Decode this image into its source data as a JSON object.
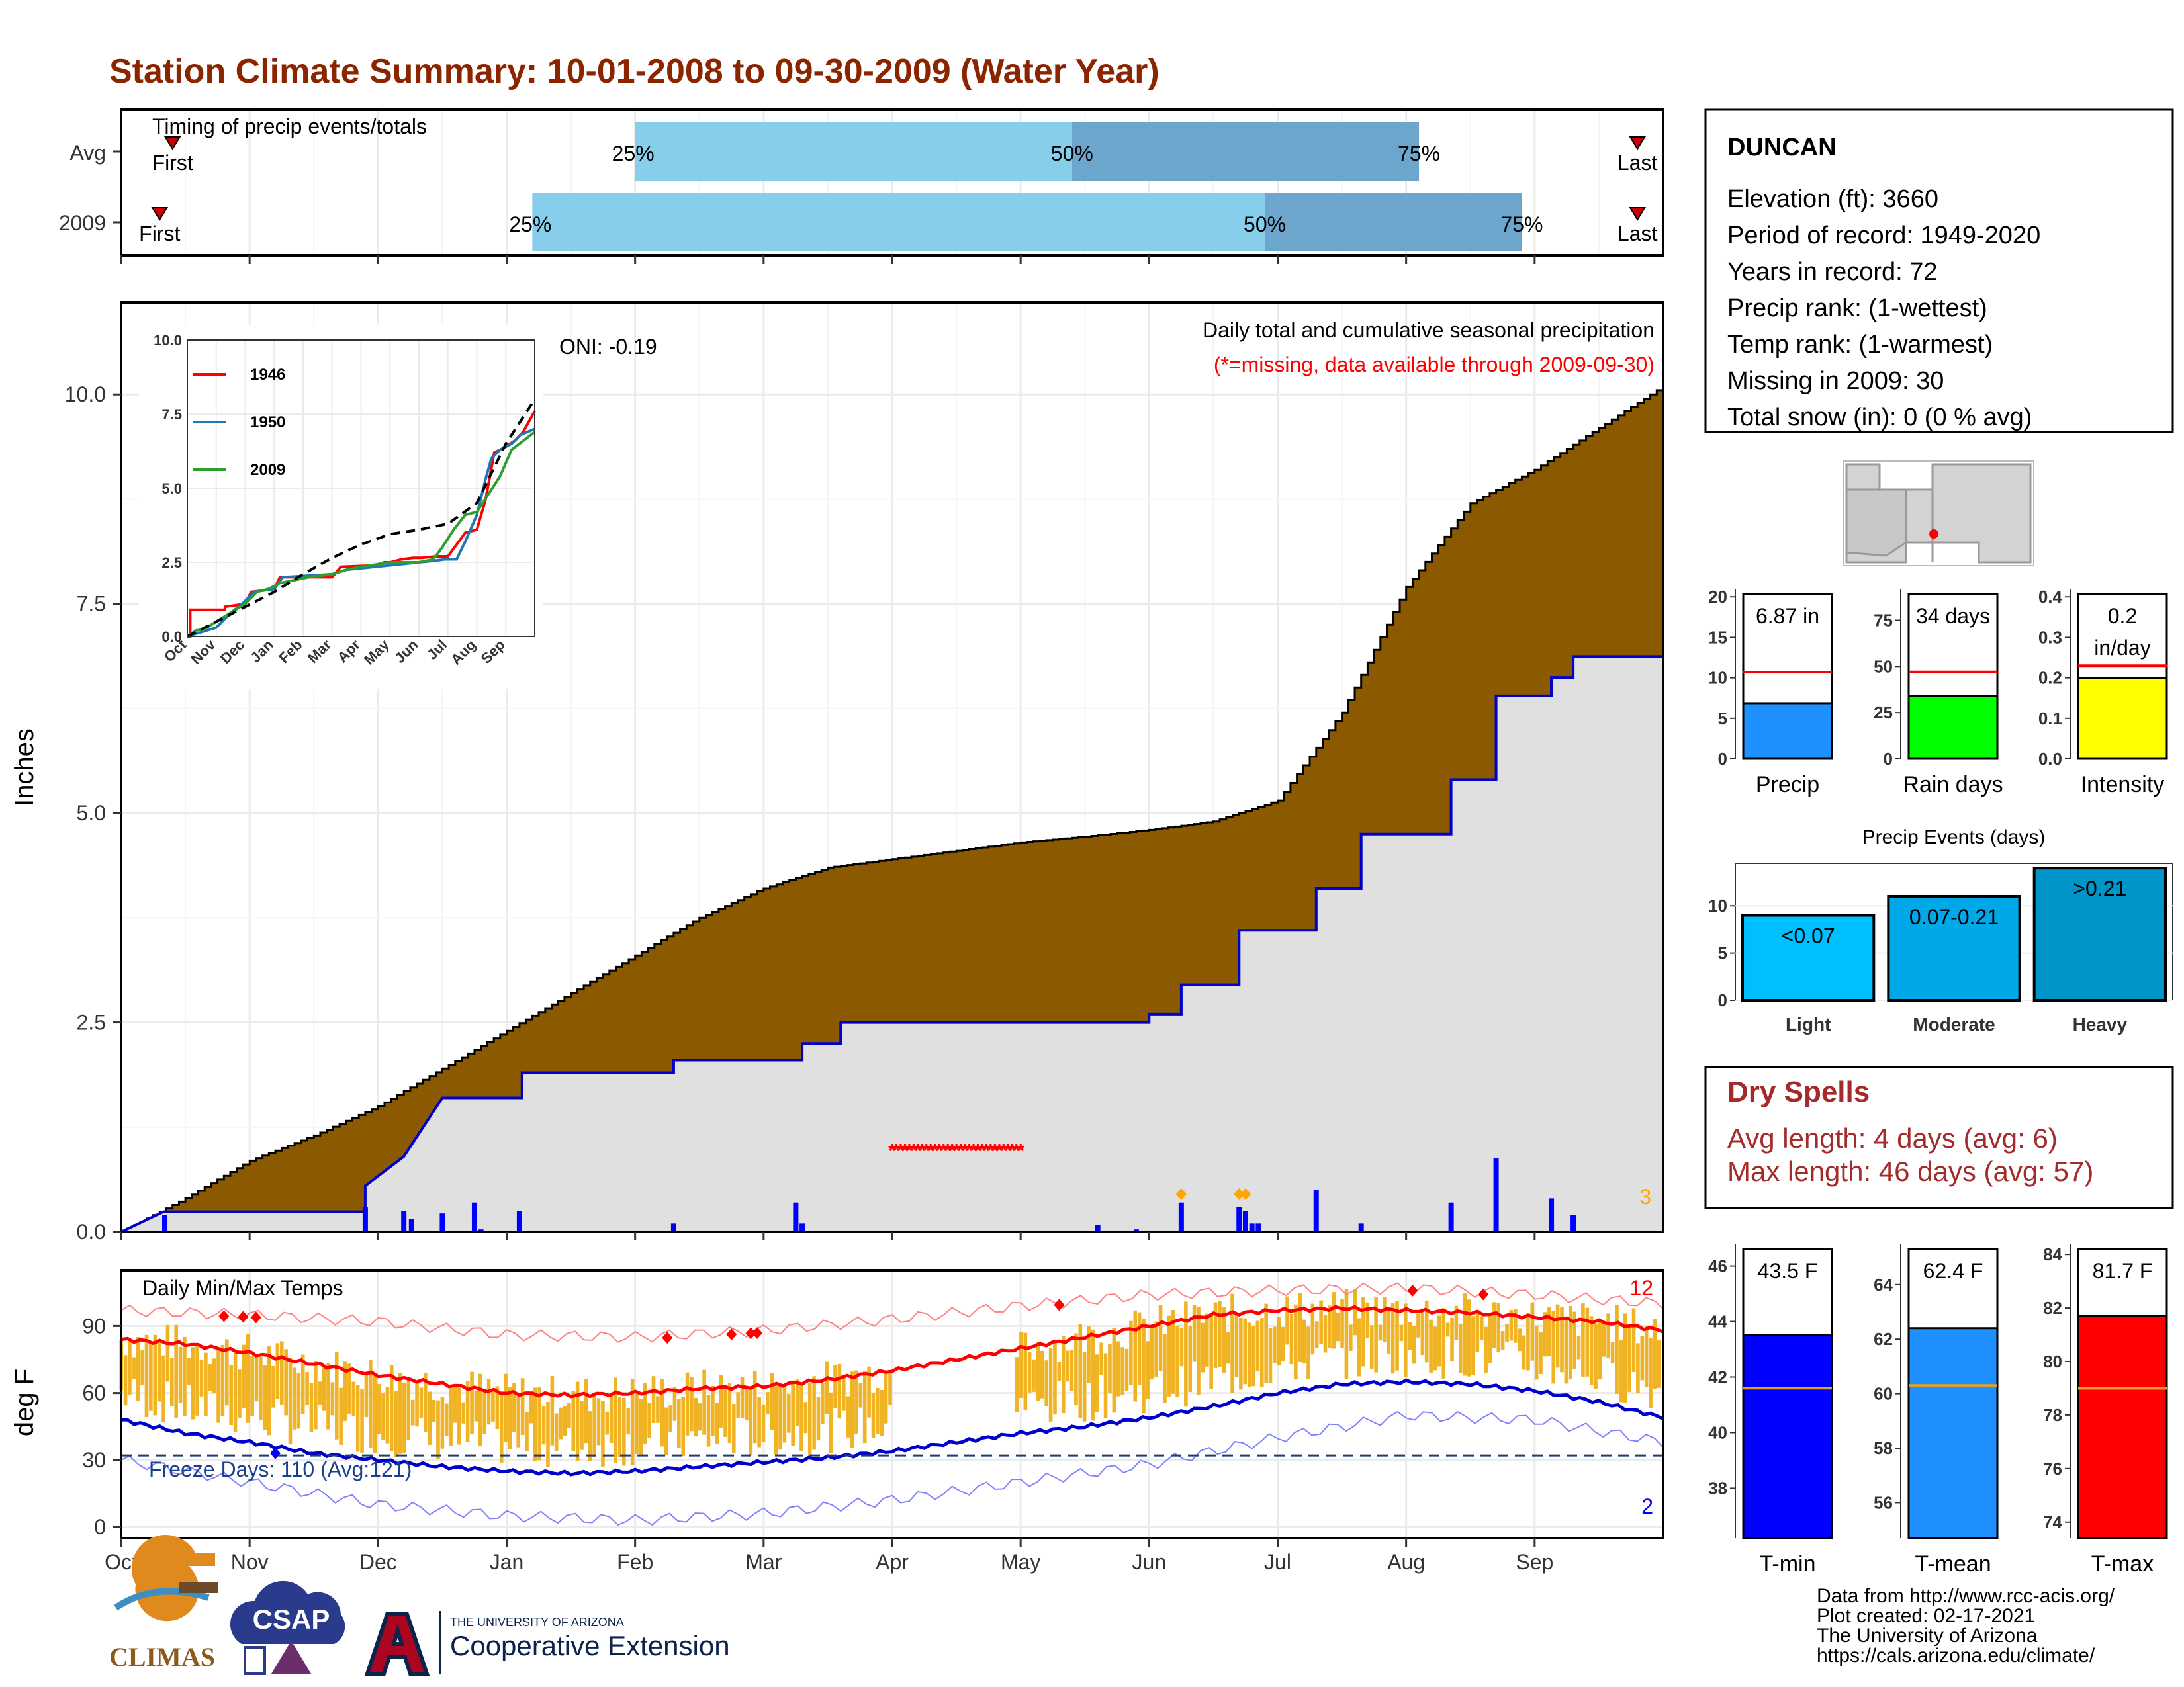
{
  "title": "Station Climate Summary: 10-01-2008 to 09-30-2009 (Water Year)",
  "timing": {
    "title": "Timing of precip events/totals",
    "rows": [
      {
        "label": "Avg",
        "first_month": 0.4,
        "q25_month": 4.0,
        "q50_month": 7.4,
        "q75_month": 10.1,
        "last_month": 11.8,
        "q25_label": "25%",
        "q50_label": "50%",
        "q75_label": "75%",
        "first_label": "First",
        "last_label": "Last"
      },
      {
        "label": "2009",
        "first_month": 0.3,
        "q25_month": 3.2,
        "q50_month": 8.9,
        "q75_month": 10.9,
        "last_month": 11.8,
        "q25_label": "25%",
        "q50_label": "50%",
        "q75_label": "75%",
        "first_label": "First",
        "last_label": "Last"
      }
    ],
    "colors": {
      "light": "#87ceeb",
      "dark": "#6ca6cd"
    }
  },
  "precip_panel": {
    "ylabel": "Inches",
    "y_ticks": [
      "0.0",
      "2.5",
      "5.0",
      "7.5",
      "10.0"
    ],
    "ylim": [
      0,
      11.1
    ],
    "note1": "Daily total and cumulative seasonal precipitation",
    "note2": "(*=missing, data available through 2009-09-30)",
    "oni": "ONI: -0.19",
    "corner_count": "3",
    "missing_range_months": [
      6.0,
      7.0
    ],
    "missing_y": 1.0,
    "colors": {
      "avg_fill": "#8b5a00",
      "obs_fill": "#e0e0e0",
      "obs_line": "#0000cd",
      "bars": "#0000ff",
      "missing": "#ff0000",
      "diamond": "#ffa500"
    }
  },
  "chart_data": [
    {
      "type": "area",
      "name": "cumulative precipitation",
      "x_unit": "month since Oct 1",
      "avg_cumulative": {
        "x": [
          0,
          0.5,
          1,
          1.5,
          2,
          2.5,
          3,
          3.5,
          4,
          4.5,
          5,
          5.5,
          6,
          6.5,
          7,
          7.5,
          8,
          8.5,
          9,
          9.5,
          10,
          10.5,
          11,
          11.5,
          12
        ],
        "y": [
          0,
          0.4,
          0.85,
          1.15,
          1.5,
          1.95,
          2.4,
          2.85,
          3.3,
          3.75,
          4.1,
          4.35,
          4.45,
          4.55,
          4.65,
          4.72,
          4.8,
          4.9,
          5.15,
          6.2,
          7.7,
          8.7,
          9.1,
          9.6,
          10.1
        ]
      },
      "obs_cumulative": {
        "steps": [
          [
            0,
            0
          ],
          [
            0.33,
            0.24
          ],
          [
            1.9,
            0.24
          ],
          [
            1.9,
            0.55
          ],
          [
            2.2,
            0.9
          ],
          [
            2.5,
            1.6
          ],
          [
            3.12,
            1.6
          ],
          [
            3.12,
            1.9
          ],
          [
            4.3,
            1.9
          ],
          [
            4.3,
            2.05
          ],
          [
            5.3,
            2.05
          ],
          [
            5.3,
            2.25
          ],
          [
            5.6,
            2.25
          ],
          [
            5.6,
            2.5
          ],
          [
            8.0,
            2.5
          ],
          [
            8.0,
            2.6
          ],
          [
            8.25,
            2.6
          ],
          [
            8.25,
            2.95
          ],
          [
            8.7,
            2.95
          ],
          [
            8.7,
            3.6
          ],
          [
            9.3,
            3.6
          ],
          [
            9.3,
            4.1
          ],
          [
            9.65,
            4.1
          ],
          [
            9.65,
            4.75
          ],
          [
            10.35,
            4.75
          ],
          [
            10.35,
            5.4
          ],
          [
            10.7,
            5.4
          ],
          [
            10.7,
            6.4
          ],
          [
            11.13,
            6.4
          ],
          [
            11.13,
            6.62
          ],
          [
            11.3,
            6.62
          ],
          [
            11.3,
            6.87
          ],
          [
            12,
            6.87
          ]
        ]
      },
      "daily_bars": {
        "x": [
          0.34,
          1.9,
          2.2,
          2.26,
          2.5,
          2.75,
          2.8,
          3.1,
          4.3,
          5.25,
          5.3,
          7.6,
          7.9,
          8.25,
          8.7,
          8.75,
          8.8,
          8.85,
          9.3,
          9.65,
          10.35,
          10.7,
          11.13,
          11.3
        ],
        "y": [
          0.2,
          0.3,
          0.25,
          0.15,
          0.22,
          0.35,
          0.03,
          0.25,
          0.1,
          0.35,
          0.1,
          0.08,
          0.03,
          0.35,
          0.3,
          0.25,
          0.1,
          0.1,
          0.5,
          0.1,
          0.35,
          0.88,
          0.4,
          0.2
        ]
      },
      "diamonds_x": [
        8.25,
        8.7,
        8.75
      ]
    },
    {
      "type": "line",
      "name": "inset cumulative comparison",
      "series": [
        {
          "name": "1946",
          "color": "#ff0000",
          "x": [
            0,
            0.1,
            0.1,
            1.3,
            1.3,
            2.0,
            2.2,
            3.0,
            3.2,
            5.0,
            5.3,
            6.5,
            6.8,
            7.0,
            7.4,
            7.8,
            8.1,
            8.6,
            9.0,
            9.3,
            9.6,
            10.0,
            10.3,
            10.6,
            11.0,
            11.3,
            11.6,
            12
          ],
          "y": [
            0,
            0,
            0.9,
            0.9,
            1.0,
            1.1,
            1.5,
            1.6,
            2.0,
            2.0,
            2.35,
            2.4,
            2.5,
            2.5,
            2.6,
            2.65,
            2.65,
            2.7,
            2.7,
            3.1,
            3.5,
            3.6,
            4.6,
            6.2,
            6.4,
            6.6,
            6.9,
            7.6
          ]
        },
        {
          "name": "1950",
          "color": "#1f77b4",
          "x": [
            0,
            1.0,
            1.5,
            1.9,
            2.3,
            3.0,
            3.3,
            5.0,
            5.5,
            6.0,
            6.5,
            7.0,
            7.5,
            8.0,
            8.5,
            8.9,
            9.3,
            9.6,
            10.0,
            10.3,
            10.5,
            10.8,
            11.2,
            11.5,
            12
          ],
          "y": [
            0,
            0.3,
            0.8,
            1.1,
            1.5,
            1.6,
            2.0,
            2.1,
            2.25,
            2.3,
            2.35,
            2.4,
            2.45,
            2.5,
            2.55,
            2.6,
            2.6,
            3.2,
            4.1,
            5.3,
            6.0,
            6.3,
            6.5,
            6.8,
            7.0
          ]
        },
        {
          "name": "2009",
          "color": "#2ca02c",
          "x": [
            0,
            0.3,
            0.6,
            1.0,
            1.5,
            2.0,
            2.4,
            2.8,
            3.2,
            4.2,
            5.0,
            5.5,
            6.0,
            7.0,
            8.0,
            8.5,
            8.8,
            9.2,
            9.6,
            10.0,
            10.4,
            10.8,
            11.2,
            11.6,
            12
          ],
          "y": [
            0,
            0.2,
            0.25,
            0.5,
            0.8,
            1.1,
            1.5,
            1.6,
            1.8,
            2.0,
            2.1,
            2.25,
            2.35,
            2.5,
            2.5,
            2.6,
            3.0,
            3.6,
            4.1,
            4.2,
            4.8,
            5.4,
            6.3,
            6.6,
            6.9
          ]
        },
        {
          "name": "",
          "color": "#000000",
          "dashed": true,
          "x": [
            0,
            1,
            2,
            3,
            4,
            5,
            6,
            7,
            8,
            9,
            10,
            11,
            12
          ],
          "y": [
            0,
            0.5,
            1.0,
            1.5,
            2.1,
            2.65,
            3.1,
            3.45,
            3.6,
            3.8,
            4.5,
            6.5,
            8.0
          ]
        }
      ],
      "y_ticks": [
        "0.0",
        "2.5",
        "5.0",
        "7.5",
        "10.0"
      ],
      "x_ticks": [
        "Oct",
        "Nov",
        "Dec",
        "Jan",
        "Feb",
        "Mar",
        "Apr",
        "May",
        "Jun",
        "Jul",
        "Aug",
        "Sep"
      ],
      "ylim": [
        0,
        10
      ]
    },
    {
      "type": "bar",
      "name": "daily temperature",
      "title": "Daily Min/Max Temps",
      "ylabel": "deg F",
      "y_ticks": [
        "0",
        "30",
        "60",
        "90"
      ],
      "ylim": [
        -5,
        115
      ],
      "freeze_label": "Freeze Days: 110 (Avg:121)",
      "top_count": "12",
      "bottom_count": "2",
      "freeze_line": 32,
      "avg_max": {
        "x": [
          0,
          0.5,
          1,
          1.5,
          2,
          2.5,
          3,
          3.5,
          4,
          4.5,
          5,
          5.5,
          6,
          6.5,
          7,
          7.5,
          8,
          8.5,
          9,
          9.5,
          10,
          10.5,
          11,
          11.5,
          12
        ],
        "y": [
          84,
          82,
          78,
          73,
          68,
          64,
          60,
          59,
          60,
          62,
          63,
          66,
          70,
          75,
          80,
          85,
          90,
          95,
          97,
          98,
          97,
          96,
          94,
          92,
          88
        ]
      },
      "avg_min": {
        "x": [
          0,
          0.5,
          1,
          1.5,
          2,
          2.5,
          3,
          3.5,
          4,
          4.5,
          5,
          5.5,
          6,
          6.5,
          7,
          7.5,
          8,
          8.5,
          9,
          9.5,
          10,
          10.5,
          11,
          11.5,
          12
        ],
        "y": [
          48,
          42,
          38,
          33,
          30,
          27,
          25,
          24,
          25,
          27,
          29,
          31,
          34,
          38,
          42,
          45,
          49,
          54,
          60,
          64,
          65,
          64,
          61,
          56,
          49
        ]
      },
      "rec_max": {
        "x": [
          0,
          1,
          2,
          3,
          4,
          5,
          6,
          7,
          8,
          9,
          10,
          11,
          12
        ],
        "y": [
          97,
          95,
          92,
          86,
          85,
          88,
          93,
          99,
          104,
          106,
          107,
          104,
          100
        ]
      },
      "rec_min": {
        "x": [
          0,
          1,
          2,
          3,
          4,
          5,
          6,
          7,
          8,
          9,
          10,
          11,
          12
        ],
        "y": [
          30,
          20,
          10,
          5,
          3,
          6,
          12,
          20,
          28,
          40,
          50,
          48,
          38
        ]
      },
      "missing_months": [
        6.0,
        6.95
      ],
      "bar_color": "#f0b323",
      "record_high_x": [
        0.8,
        0.95,
        1.05,
        4.25,
        4.75,
        4.9,
        4.95,
        7.3,
        10.05,
        10.6
      ],
      "record_low_x": [
        1.2
      ]
    },
    {
      "type": "bar",
      "name": "season precip",
      "title": "",
      "categories": [
        "Precip"
      ],
      "values": [
        6.87
      ],
      "avg": 10.7,
      "label": "6.87 in",
      "y_ticks": [
        "0",
        "5",
        "10",
        "15",
        "20"
      ],
      "ylim": [
        0,
        21
      ],
      "color": "#1e90ff"
    },
    {
      "type": "bar",
      "name": "rain days",
      "categories": [
        "Rain days"
      ],
      "values": [
        34
      ],
      "avg": 47,
      "label": "34 days",
      "y_ticks": [
        "0",
        "25",
        "50",
        "75"
      ],
      "ylim": [
        0,
        92
      ],
      "color": "#00ff00"
    },
    {
      "type": "bar",
      "name": "intensity",
      "categories": [
        "Intensity"
      ],
      "values": [
        0.2
      ],
      "avg": 0.23,
      "label": "0.2",
      "label2": "in/day",
      "y_ticks": [
        "0.0",
        "0.1",
        "0.2",
        "0.3",
        "0.4"
      ],
      "ylim": [
        0,
        0.42
      ],
      "color": "#ffff00"
    },
    {
      "type": "bar",
      "name": "precip events",
      "title": "Precip Events (days)",
      "categories": [
        "Light",
        "Moderate",
        "Heavy"
      ],
      "values": [
        9,
        11,
        14
      ],
      "bar_labels": [
        "<0.07",
        "0.07-0.21",
        ">0.21"
      ],
      "y_ticks": [
        "0",
        "5",
        "10"
      ],
      "ylim": [
        0,
        14.5
      ],
      "colors": [
        "#00bfff",
        "#00a8e8",
        "#0095c8"
      ]
    },
    {
      "type": "bar",
      "name": "t-min",
      "categories": [
        "T-min"
      ],
      "values": [
        43.5
      ],
      "avg": 41.6,
      "label": "43.5 F",
      "y_ticks": [
        "38",
        "40",
        "42",
        "44",
        "46"
      ],
      "ylim": [
        36.2,
        46.8
      ],
      "color": "#0000ff"
    },
    {
      "type": "bar",
      "name": "t-mean",
      "categories": [
        "T-mean"
      ],
      "values": [
        62.4
      ],
      "avg": 60.3,
      "label": "62.4 F",
      "y_ticks": [
        "56",
        "58",
        "60",
        "62",
        "64"
      ],
      "ylim": [
        54.7,
        65.5
      ],
      "color": "#1e90ff"
    },
    {
      "type": "bar",
      "name": "t-max",
      "categories": [
        "T-max"
      ],
      "values": [
        81.7
      ],
      "avg": 79.0,
      "label": "81.7 F",
      "y_ticks": [
        "74",
        "76",
        "78",
        "80",
        "82",
        "84"
      ],
      "ylim": [
        73.4,
        84.4
      ],
      "color": "#ff0000"
    }
  ],
  "months": [
    "Oct",
    "Nov",
    "Dec",
    "Jan",
    "Feb",
    "Mar",
    "Apr",
    "May",
    "Jun",
    "Jul",
    "Aug",
    "Sep"
  ],
  "station": {
    "name": "DUNCAN",
    "lines": [
      "Elevation (ft): 3660",
      "Period of record: 1949-2020",
      "Years in record: 72",
      "Precip rank:  (1-wettest)",
      "Temp rank:  (1-warmest)",
      "Missing in 2009: 30",
      "Total snow (in): 0 (0 % avg)"
    ]
  },
  "dry_spells": {
    "title": "Dry Spells",
    "avg": "Avg length: 4 days (avg: 6)",
    "max": "Max length: 46 days (avg: 57)",
    "color": "#a52a2a"
  },
  "footer": {
    "lines": [
      "Data from http://www.rcc-acis.org/",
      "Plot created: 02-17-2021",
      "The University of Arizona",
      "https://cals.arizona.edu/climate/"
    ],
    "climas": "CLIMAS",
    "csap": "CSAP",
    "ua_small": "THE UNIVERSITY OF ARIZONA",
    "ua_big": "Cooperative Extension"
  }
}
